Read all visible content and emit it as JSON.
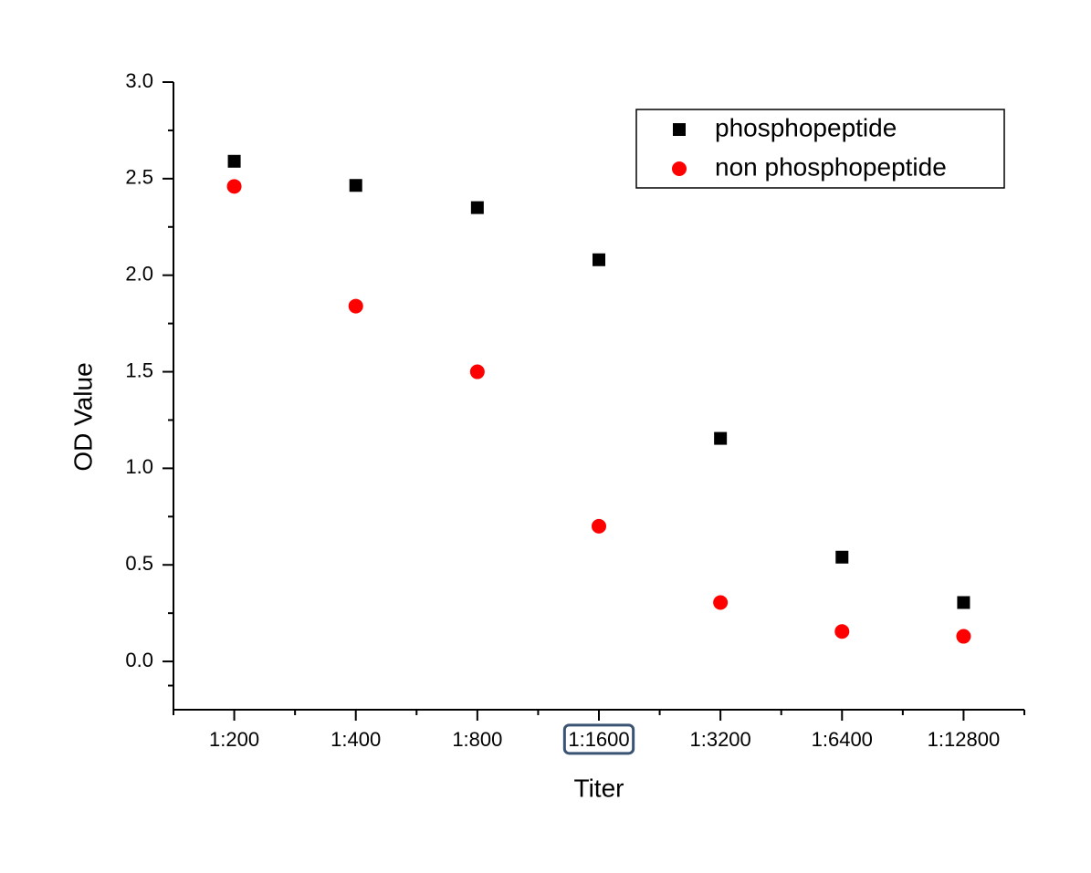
{
  "chart_data": {
    "type": "scatter",
    "x_label": "Titer",
    "y_label": "OD Value",
    "categories": [
      "1:200",
      "1:400",
      "1:800",
      "1:1600",
      "1:3200",
      "1:6400",
      "1:12800"
    ],
    "series": [
      {
        "name": "phosphopeptide",
        "color": "#000000",
        "marker": "square",
        "values": [
          2.59,
          2.465,
          2.35,
          2.08,
          1.155,
          0.54,
          0.305
        ]
      },
      {
        "name": "non phosphopeptide",
        "color": "#ff0000",
        "marker": "circle",
        "values": [
          2.46,
          1.84,
          1.5,
          0.7,
          0.305,
          0.155,
          0.13
        ]
      }
    ],
    "ylim": [
      -0.25,
      3.0
    ],
    "yticks": [
      {
        "value": 0,
        "label": "0.0"
      },
      0.5,
      {
        "value": 1,
        "label": "1.0"
      },
      1.5,
      {
        "value": 2,
        "label": "2.0"
      },
      2.5,
      {
        "value": 3,
        "label": "3.0"
      }
    ],
    "legend": "upper-right",
    "highlight": 3
  }
}
